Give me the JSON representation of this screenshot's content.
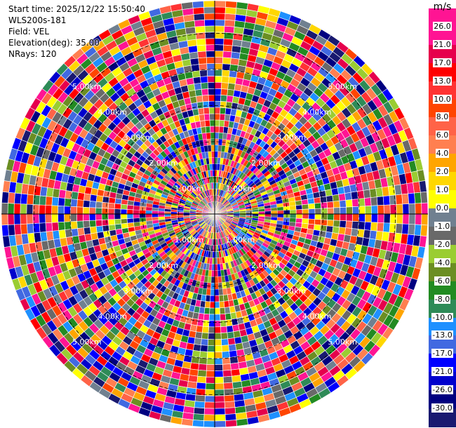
{
  "info": {
    "start_time": "Start time: 2025/12/22 15:50:40",
    "station": "WLS200s-181",
    "field": "Field: VEL",
    "elevation": "Elevation(deg): 35.00",
    "nrays": "NRays: 120"
  },
  "chart_data": {
    "type": "heatmap",
    "projection": "polar-ppi",
    "field": "VEL",
    "n_rays": 120,
    "range_rings_km": [
      1.0,
      2.0,
      3.0,
      4.0,
      5.0
    ],
    "ring_label_text": [
      "1.00km",
      "2.00km",
      "3.00km",
      "4.00km",
      "5.00km"
    ],
    "max_range_km": 5.9,
    "colorbar": {
      "unit": "m/s",
      "ticks": [
        "26.0",
        "21.0",
        "17.0",
        "13.0",
        "10.0",
        "8.0",
        "6.0",
        "4.0",
        "2.0",
        "1.0",
        "0.0",
        "-1.0",
        "-2.0",
        "-4.0",
        "-6.0",
        "-8.0",
        "-10.0",
        "-13.0",
        "-17.0",
        "-21.0",
        "-26.0",
        "-30.0"
      ],
      "colors": [
        "#ff1493",
        "#ff1493",
        "#e6004c",
        "#ff0000",
        "#ff3333",
        "#ff4500",
        "#ff6347",
        "#ff7f50",
        "#ffa500",
        "#ffd700",
        "#ffff00",
        "#708090",
        "#696969",
        "#9acd32",
        "#6b8e23",
        "#228b22",
        "#2e8b57",
        "#1e90ff",
        "#4169e1",
        "#0000ff",
        "#0000cd",
        "#000080",
        "#191970"
      ]
    }
  }
}
